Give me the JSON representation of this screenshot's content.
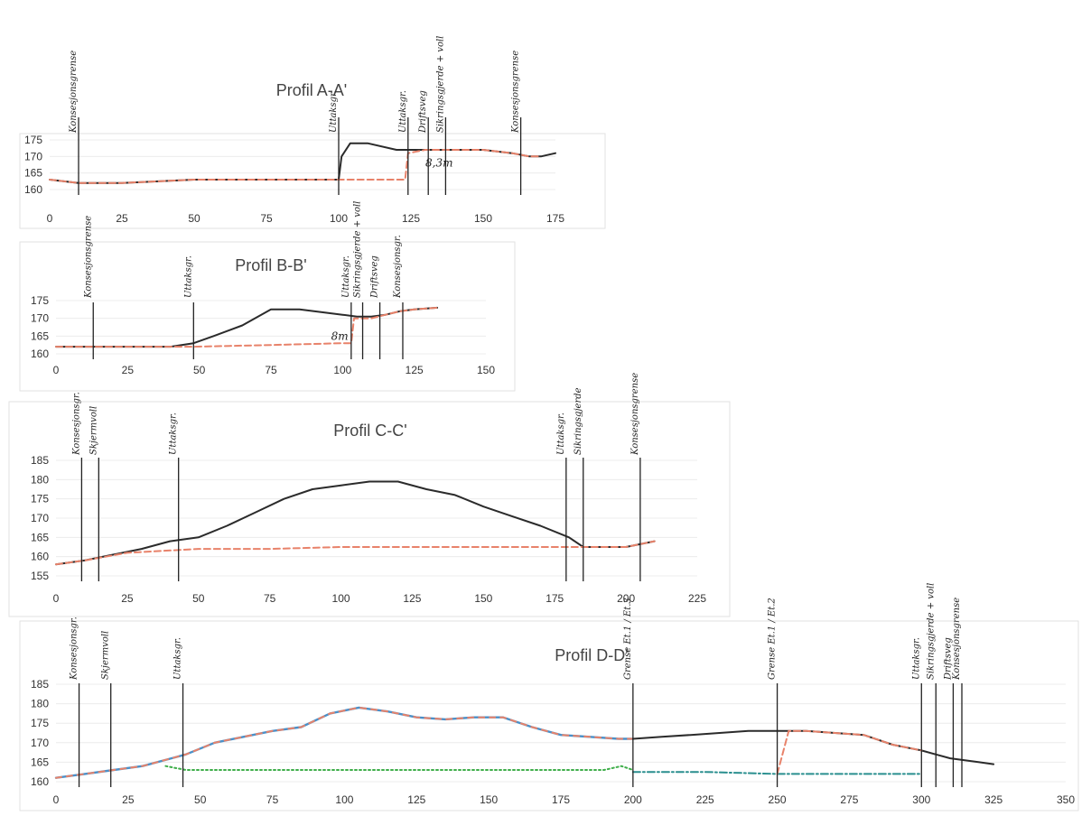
{
  "colors": {
    "terrain": "#2b2b2b",
    "planned": "#e8826a",
    "water": "#4a90c8",
    "green_dotted": "#3fae4a",
    "teal_dashdot": "#2a8f8f",
    "grid": "#ececec"
  },
  "chart_data": [
    {
      "type": "line",
      "title": "Profil A-A'",
      "xlim": [
        0,
        175
      ],
      "ylim": [
        160,
        175
      ],
      "xticks": [
        0,
        25,
        50,
        75,
        100,
        125,
        150,
        175
      ],
      "yticks": [
        160,
        165,
        170,
        175
      ],
      "grid": true,
      "series": [
        {
          "style": "solid-dark",
          "x": [
            0,
            10,
            25,
            50,
            75,
            100,
            101,
            104,
            110,
            120,
            150,
            160,
            166,
            170,
            175
          ],
          "y": [
            163,
            162,
            162,
            163,
            163,
            163,
            170,
            174,
            174,
            172,
            172,
            171,
            170,
            170,
            171
          ]
        },
        {
          "style": "dashed-orange",
          "x": [
            0,
            10,
            25,
            50,
            75,
            100,
            123,
            124,
            130,
            150,
            160,
            166,
            170
          ],
          "y": [
            163,
            162,
            162,
            163,
            163,
            163,
            163,
            171,
            172,
            172,
            171,
            170,
            170
          ]
        }
      ],
      "annotations": [
        {
          "label": "Konsesjonsgrense",
          "x": 10
        },
        {
          "label": "Uttaksgr.",
          "x": 100
        },
        {
          "label": "Uttaksgr.",
          "x": 124
        },
        {
          "label": "Driftsveg",
          "x": 131
        },
        {
          "label": "Sikringsgjerde + voll",
          "x": 137
        },
        {
          "label": "Konsesjonsgrense",
          "x": 163
        }
      ],
      "notes": [
        {
          "text": "8,3m",
          "x": 130,
          "y": 167
        }
      ]
    },
    {
      "type": "line",
      "title": "Profil B-B'",
      "xlim": [
        0,
        150
      ],
      "ylim": [
        160,
        175
      ],
      "xticks": [
        0,
        25,
        50,
        75,
        100,
        125,
        150
      ],
      "yticks": [
        160,
        165,
        170,
        175
      ],
      "grid": true,
      "series": [
        {
          "style": "solid-dark",
          "x": [
            0,
            25,
            40,
            48,
            55,
            65,
            75,
            85,
            95,
            100,
            105,
            110,
            115,
            120,
            125,
            133
          ],
          "y": [
            162,
            162,
            162,
            163,
            165,
            168,
            172.5,
            172.5,
            171.5,
            171,
            170.5,
            170.5,
            171,
            172,
            172.5,
            173
          ]
        },
        {
          "style": "dashed-orange",
          "x": [
            0,
            25,
            48,
            75,
            100,
            103,
            104,
            110,
            115,
            120,
            125,
            133
          ],
          "y": [
            162,
            162,
            162,
            162.5,
            163,
            163,
            170,
            170,
            171,
            172,
            172.5,
            173
          ]
        }
      ],
      "annotations": [
        {
          "label": "Konsesjonsgrense",
          "x": 13
        },
        {
          "label": "Uttaksgr.",
          "x": 48
        },
        {
          "label": "Uttaksgr.",
          "x": 103
        },
        {
          "label": "Sikringsgjerde + voll",
          "x": 107
        },
        {
          "label": "Driftsveg",
          "x": 113
        },
        {
          "label": "Konsesjonsgr.",
          "x": 121
        }
      ],
      "notes": [
        {
          "text": "8m",
          "x": 96,
          "y": 164
        }
      ]
    },
    {
      "type": "line",
      "title": "Profil C-C'",
      "xlim": [
        0,
        225
      ],
      "ylim": [
        155,
        185
      ],
      "xticks": [
        0,
        25,
        50,
        75,
        100,
        125,
        150,
        175,
        200,
        225
      ],
      "yticks": [
        155,
        160,
        165,
        170,
        175,
        180,
        185
      ],
      "grid": true,
      "series": [
        {
          "style": "solid-dark",
          "x": [
            0,
            10,
            20,
            30,
            40,
            50,
            60,
            70,
            80,
            90,
            100,
            110,
            120,
            130,
            140,
            150,
            160,
            170,
            180,
            185,
            190,
            200,
            210
          ],
          "y": [
            158,
            159,
            160.5,
            162,
            164,
            165,
            168,
            171.5,
            175,
            177.5,
            178.5,
            179.5,
            179.5,
            177.5,
            176,
            173,
            170.5,
            168,
            165,
            162.5,
            162.5,
            162.5,
            164
          ]
        },
        {
          "style": "dashed-orange",
          "x": [
            0,
            10,
            25,
            50,
            75,
            100,
            125,
            150,
            175,
            185,
            190,
            200,
            210
          ],
          "y": [
            158,
            159,
            161,
            162,
            162,
            162.5,
            162.5,
            162.5,
            162.5,
            162.5,
            162.5,
            162.5,
            164
          ]
        }
      ],
      "annotations": [
        {
          "label": "Konsesjonsgr.",
          "x": 9
        },
        {
          "label": "Skjermvoll",
          "x": 15
        },
        {
          "label": "Uttaksgr.",
          "x": 43
        },
        {
          "label": "Uttaksgr.",
          "x": 179
        },
        {
          "label": "Sikringsgjerde",
          "x": 185
        },
        {
          "label": "Konsesjonsgrense",
          "x": 205
        }
      ]
    },
    {
      "type": "line",
      "title": "Profil D-D'",
      "xlim": [
        0,
        350
      ],
      "ylim": [
        160,
        185
      ],
      "xticks": [
        0,
        25,
        50,
        75,
        100,
        125,
        150,
        175,
        200,
        225,
        250,
        275,
        300,
        325,
        350
      ],
      "yticks": [
        160,
        165,
        170,
        175,
        180,
        185
      ],
      "grid": true,
      "series": [
        {
          "style": "dashed-blue-orange",
          "x": [
            0,
            10,
            20,
            30,
            40,
            45,
            55,
            65,
            75,
            85,
            95,
            105,
            115,
            125,
            135,
            145,
            155,
            165,
            175,
            185,
            195,
            200
          ],
          "y": [
            161,
            162,
            163,
            164,
            166,
            167,
            170,
            171.5,
            173,
            174,
            177.5,
            179,
            178,
            176.5,
            176,
            176.5,
            176.5,
            174,
            172,
            171.5,
            171,
            171
          ]
        },
        {
          "style": "solid-dark",
          "x": [
            200,
            210,
            220,
            230,
            240,
            250,
            260,
            270,
            280,
            290,
            300,
            305,
            310,
            315,
            320,
            325
          ],
          "y": [
            171,
            171.5,
            172,
            172.5,
            173,
            173,
            173,
            172.5,
            172,
            169.5,
            168,
            167,
            166,
            165.5,
            165,
            164.5
          ]
        },
        {
          "style": "dotted-green",
          "x": [
            38,
            45,
            75,
            100,
            125,
            150,
            175,
            190,
            196,
            200
          ],
          "y": [
            164,
            163,
            163,
            163,
            163,
            163,
            163,
            163,
            164,
            163
          ]
        },
        {
          "style": "dashdot-teal",
          "x": [
            200,
            225,
            250,
            275,
            300
          ],
          "y": [
            162.5,
            162.5,
            162,
            162,
            162
          ]
        },
        {
          "style": "dashed-orange",
          "x": [
            250,
            254,
            260,
            270,
            280,
            290,
            300
          ],
          "y": [
            162,
            173,
            173,
            172.5,
            172,
            169.5,
            168
          ]
        }
      ],
      "annotations": [
        {
          "label": "Konsesjonsgr.",
          "x": 8
        },
        {
          "label": "Skjermvoll",
          "x": 19
        },
        {
          "label": "Uttaksgr.",
          "x": 44
        },
        {
          "label": "Grense Et.1 / Et.3",
          "x": 200
        },
        {
          "label": "Grense Et.1 / Et.2",
          "x": 250
        },
        {
          "label": "Uttaksgr.",
          "x": 300
        },
        {
          "label": "Sikringsgjerde + voll",
          "x": 305
        },
        {
          "label": "Driftsveg",
          "x": 311
        },
        {
          "label": "Konsesjonsgrense",
          "x": 314
        }
      ]
    }
  ]
}
